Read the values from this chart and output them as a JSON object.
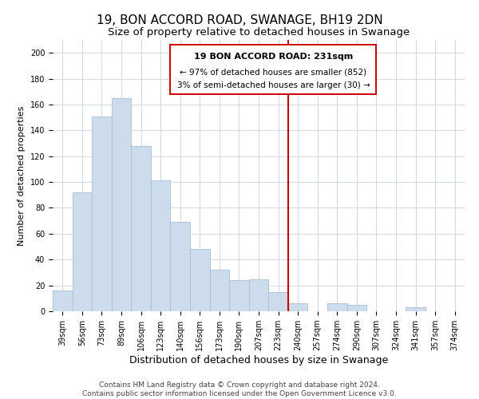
{
  "title": "19, BON ACCORD ROAD, SWANAGE, BH19 2DN",
  "subtitle": "Size of property relative to detached houses in Swanage",
  "xlabel": "Distribution of detached houses by size in Swanage",
  "ylabel": "Number of detached properties",
  "bar_labels": [
    "39sqm",
    "56sqm",
    "73sqm",
    "89sqm",
    "106sqm",
    "123sqm",
    "140sqm",
    "156sqm",
    "173sqm",
    "190sqm",
    "207sqm",
    "223sqm",
    "240sqm",
    "257sqm",
    "274sqm",
    "290sqm",
    "307sqm",
    "324sqm",
    "341sqm",
    "357sqm",
    "374sqm"
  ],
  "bar_values": [
    16,
    92,
    151,
    165,
    128,
    101,
    69,
    48,
    32,
    24,
    25,
    15,
    6,
    0,
    6,
    5,
    0,
    0,
    3,
    0,
    0
  ],
  "bar_color": "#ccdcec",
  "bar_edge_color": "#a8c0d4",
  "grid_color": "#d0d8e4",
  "vline_color": "#cc0000",
  "vline_pos": 11.5,
  "annotation_title": "19 BON ACCORD ROAD: 231sqm",
  "annotation_line1": "← 97% of detached houses are smaller (852)",
  "annotation_line2": "3% of semi-detached houses are larger (30) →",
  "ylim": [
    0,
    210
  ],
  "yticks": [
    0,
    20,
    40,
    60,
    80,
    100,
    120,
    140,
    160,
    180,
    200
  ],
  "footer_line1": "Contains HM Land Registry data © Crown copyright and database right 2024.",
  "footer_line2": "Contains public sector information licensed under the Open Government Licence v3.0.",
  "title_fontsize": 11,
  "subtitle_fontsize": 9.5,
  "xlabel_fontsize": 9,
  "ylabel_fontsize": 8,
  "tick_fontsize": 7,
  "footer_fontsize": 6.5,
  "ann_fontsize_title": 8,
  "ann_fontsize_body": 7.5
}
